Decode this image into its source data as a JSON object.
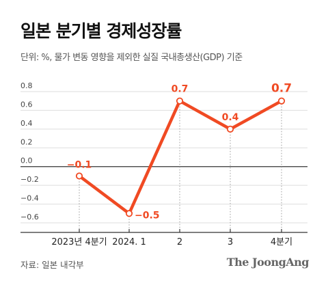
{
  "title": "일본 분기별 경제성장률",
  "subtitle": "단위: %, 물가 변동 영향을 제외한 실질 국내총생산(GDP) 기준",
  "source": "자료: 일본 내각부",
  "brand": "The JoongAng",
  "colors": {
    "line": "#f04a23",
    "axis": "#333333",
    "grid": "#dddddd",
    "text": "#333333"
  },
  "chart_data": {
    "type": "line",
    "categories": [
      "2023년 4분기",
      "2024. 1",
      "2",
      "3",
      "4분기"
    ],
    "values": [
      -0.1,
      -0.5,
      0.7,
      0.4,
      0.7
    ],
    "data_labels": [
      "−0.1",
      "−0.5",
      "0.7",
      "0.4",
      "0.7"
    ],
    "yticks": [
      0.8,
      0.6,
      0.4,
      0.2,
      0.0,
      -0.2,
      -0.4,
      -0.6
    ],
    "ytick_labels": [
      "0.8",
      "0.6",
      "0.4",
      "0.2",
      "0.0",
      "−0.2",
      "−0.4",
      "−0.6"
    ],
    "ylim": [
      -0.6,
      0.8
    ],
    "grid": true
  }
}
